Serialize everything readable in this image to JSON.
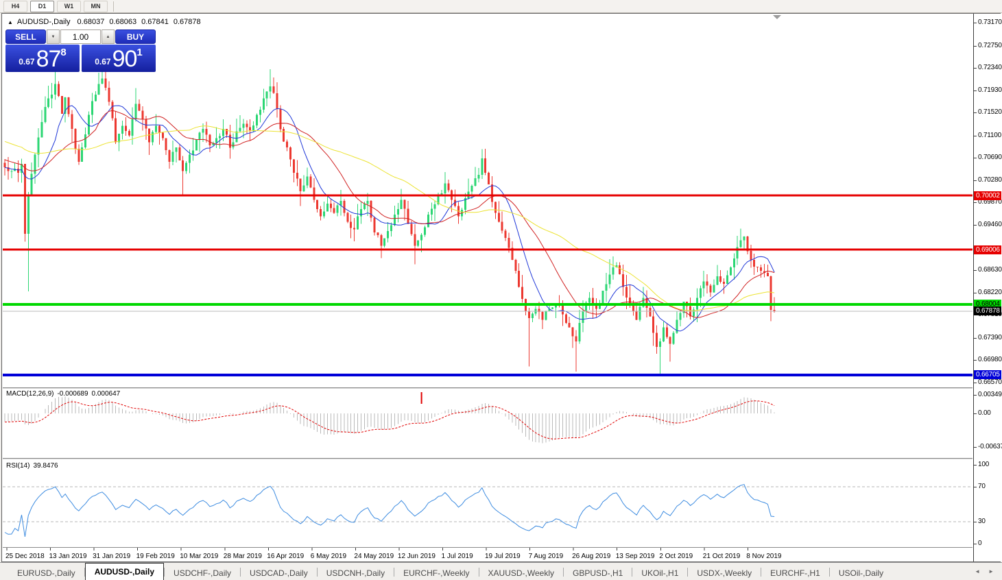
{
  "toolbar": {
    "timeframes": [
      {
        "label": "H4",
        "active": false
      },
      {
        "label": "D1",
        "active": true
      },
      {
        "label": "W1",
        "active": false
      },
      {
        "label": "MN",
        "active": false
      }
    ]
  },
  "window": {
    "collapse_glyph": "▲",
    "symbol_title": "AUDUSD-,Daily",
    "ohlc": {
      "open": "0.68037",
      "high": "0.68063",
      "low": "0.67841",
      "close": "0.67878"
    }
  },
  "trade_panel": {
    "sell_label": "SELL",
    "buy_label": "BUY",
    "volume": "1.00",
    "spin_down_glyph": "▼",
    "spin_up_glyph": "▲",
    "sell_price": {
      "prefix": "0.67",
      "big": "87",
      "sup": "8"
    },
    "buy_price": {
      "prefix": "0.67",
      "big": "90",
      "sup": "1"
    }
  },
  "price_axis": {
    "ticks": [
      0.7317,
      0.7275,
      0.7234,
      0.7193,
      0.7152,
      0.711,
      0.7069,
      0.7028,
      0.6987,
      0.6946,
      0.6863,
      0.6822,
      0.6781,
      0.6739,
      0.6698,
      0.6657
    ]
  },
  "levels": [
    {
      "price": 0.70002,
      "label": "0.70002",
      "color": "#e60000",
      "text_color": "#ffffff",
      "width": 3
    },
    {
      "price": 0.69006,
      "label": "0.69006",
      "color": "#e60000",
      "text_color": "#ffffff",
      "width": 3
    },
    {
      "price": 0.68004,
      "label": "0.68004",
      "color": "#00d800",
      "text_color": "#000000",
      "width": 4
    },
    {
      "price": 0.66705,
      "label": "0.66705",
      "color": "#0000d8",
      "text_color": "#ffffff",
      "width": 4
    }
  ],
  "current_price": {
    "price": 0.67878,
    "label": "0.67878",
    "badge_color": "#000000",
    "text_color": "#ffffff",
    "line_color": "#b9b9b9"
  },
  "indicators": {
    "macd": {
      "name": "MACD(12,26,9)",
      "value_main": "-0.000689",
      "value_signal": "0.000647",
      "axis_ticks": [
        0.00349,
        0,
        -0.00637
      ],
      "hist_color": "#b9b9b9",
      "signal_color": "#e00000"
    },
    "rsi": {
      "name": "RSI(14)",
      "value": "39.8476",
      "axis_ticks": [
        100,
        70,
        30,
        0
      ],
      "levels": [
        70,
        30
      ],
      "line_color": "#3c8be0"
    }
  },
  "chart_data": {
    "type": "candlestick",
    "symbol": "AUDUSD",
    "timeframe": "Daily",
    "bars": 230,
    "price_range_top": 0.7317,
    "price_range_bottom": 0.6657,
    "bull_color": "#2bd673",
    "bear_color": "#ec3830",
    "ma_lines": [
      {
        "period": 10,
        "color": "#2038d8"
      },
      {
        "period": 22,
        "color": "#d02020"
      },
      {
        "period": 50,
        "color": "#ece332"
      }
    ],
    "close_anchors": [
      [
        0,
        0.7052
      ],
      [
        2,
        0.7045
      ],
      [
        4,
        0.7042
      ],
      [
        5,
        0.7058
      ],
      [
        6,
        0.693
      ],
      [
        7,
        0.7
      ],
      [
        8,
        0.704
      ],
      [
        9,
        0.7075
      ],
      [
        11,
        0.7135
      ],
      [
        13,
        0.7178
      ],
      [
        15,
        0.7205
      ],
      [
        17,
        0.715
      ],
      [
        18,
        0.718
      ],
      [
        20,
        0.7122
      ],
      [
        22,
        0.7062
      ],
      [
        23,
        0.7088
      ],
      [
        25,
        0.7148
      ],
      [
        27,
        0.7185
      ],
      [
        28,
        0.7205
      ],
      [
        29,
        0.7215
      ],
      [
        30,
        0.7198
      ],
      [
        31,
        0.7172
      ],
      [
        33,
        0.7098
      ],
      [
        35,
        0.7128
      ],
      [
        37,
        0.711
      ],
      [
        39,
        0.7168
      ],
      [
        41,
        0.714
      ],
      [
        43,
        0.7098
      ],
      [
        45,
        0.7128
      ],
      [
        47,
        0.7105
      ],
      [
        49,
        0.7062
      ],
      [
        51,
        0.7088
      ],
      [
        53,
        0.7045
      ],
      [
        55,
        0.7075
      ],
      [
        57,
        0.7102
      ],
      [
        59,
        0.7122
      ],
      [
        61,
        0.7092
      ],
      [
        63,
        0.7105
      ],
      [
        65,
        0.7122
      ],
      [
        67,
        0.7088
      ],
      [
        69,
        0.7118
      ],
      [
        71,
        0.7132
      ],
      [
        73,
        0.712
      ],
      [
        75,
        0.7148
      ],
      [
        77,
        0.7178
      ],
      [
        79,
        0.72
      ],
      [
        80,
        0.7188
      ],
      [
        82,
        0.7122
      ],
      [
        84,
        0.7088
      ],
      [
        86,
        0.7042
      ],
      [
        88,
        0.7008
      ],
      [
        90,
        0.7035
      ],
      [
        92,
        0.6992
      ],
      [
        94,
        0.6962
      ],
      [
        96,
        0.6985
      ],
      [
        98,
        0.6968
      ],
      [
        100,
        0.699
      ],
      [
        102,
        0.6952
      ],
      [
        104,
        0.6938
      ],
      [
        106,
        0.6975
      ],
      [
        108,
        0.699
      ],
      [
        110,
        0.6932
      ],
      [
        112,
        0.6908
      ],
      [
        114,
        0.6935
      ],
      [
        116,
        0.6965
      ],
      [
        118,
        0.6992
      ],
      [
        120,
        0.6948
      ],
      [
        122,
        0.6908
      ],
      [
        124,
        0.6928
      ],
      [
        126,
        0.6965
      ],
      [
        129,
        0.7
      ],
      [
        131,
        0.7022
      ],
      [
        133,
        0.6992
      ],
      [
        135,
        0.6962
      ],
      [
        137,
        0.6995
      ],
      [
        139,
        0.7018
      ],
      [
        141,
        0.7038
      ],
      [
        142,
        0.7068
      ],
      [
        143,
        0.7042
      ],
      [
        145,
        0.6988
      ],
      [
        147,
        0.6952
      ],
      [
        149,
        0.6922
      ],
      [
        151,
        0.6882
      ],
      [
        153,
        0.6832
      ],
      [
        155,
        0.6788
      ],
      [
        156,
        0.6775
      ],
      [
        158,
        0.6792
      ],
      [
        160,
        0.6772
      ],
      [
        162,
        0.6792
      ],
      [
        164,
        0.6802
      ],
      [
        166,
        0.6782
      ],
      [
        168,
        0.6758
      ],
      [
        170,
        0.6732
      ],
      [
        172,
        0.6788
      ],
      [
        174,
        0.6812
      ],
      [
        176,
        0.6792
      ],
      [
        178,
        0.6825
      ],
      [
        180,
        0.6855
      ],
      [
        182,
        0.6872
      ],
      [
        184,
        0.6832
      ],
      [
        186,
        0.6802
      ],
      [
        188,
        0.6772
      ],
      [
        190,
        0.6812
      ],
      [
        192,
        0.6778
      ],
      [
        193,
        0.6748
      ],
      [
        194,
        0.6722
      ],
      [
        195,
        0.6732
      ],
      [
        196,
        0.6758
      ],
      [
        198,
        0.6728
      ],
      [
        200,
        0.6772
      ],
      [
        202,
        0.6805
      ],
      [
        204,
        0.6778
      ],
      [
        206,
        0.6812
      ],
      [
        208,
        0.6842
      ],
      [
        210,
        0.6822
      ],
      [
        212,
        0.6852
      ],
      [
        214,
        0.6838
      ],
      [
        216,
        0.6868
      ],
      [
        218,
        0.6905
      ],
      [
        219,
        0.6918
      ],
      [
        220,
        0.6925
      ],
      [
        221,
        0.6898
      ],
      [
        222,
        0.6882
      ],
      [
        224,
        0.6868
      ],
      [
        226,
        0.6858
      ],
      [
        227,
        0.6852
      ],
      [
        228,
        0.679
      ],
      [
        229,
        0.67878
      ]
    ],
    "high_spikes": {
      "15": 0.7228,
      "29": 0.7235,
      "39": 0.7197,
      "79": 0.7232,
      "118": 0.7012,
      "131": 0.7043,
      "142": 0.7085,
      "180": 0.6883,
      "190": 0.6832,
      "208": 0.6862,
      "219": 0.6938
    },
    "low_spikes": {
      "7": 0.6824,
      "53": 0.7002,
      "88": 0.6981,
      "104": 0.6916,
      "112": 0.6885,
      "122": 0.6874,
      "156": 0.6686,
      "170": 0.6677,
      "195": 0.66705,
      "198": 0.6695,
      "228": 0.6769
    },
    "x_axis_labels": [
      "25 Dec 2018",
      "13 Jan 2019",
      "31 Jan 2019",
      "19 Feb 2019",
      "10 Mar 2019",
      "28 Mar 2019",
      "16 Apr 2019",
      "6 May 2019",
      "24 May 2019",
      "12 Jun 2019",
      "1 Jul 2019",
      "19 Jul 2019",
      "7 Aug 2019",
      "26 Aug 2019",
      "13 Sep 2019",
      "2 Oct 2019",
      "21 Oct 2019",
      "8 Nov 2019"
    ]
  },
  "tab_bar": {
    "tabs": [
      {
        "label": "EURUSD-,Daily",
        "active": false
      },
      {
        "label": "AUDUSD-,Daily",
        "active": true
      },
      {
        "label": "USDCHF-,Daily",
        "active": false
      },
      {
        "label": "USDCAD-,Daily",
        "active": false
      },
      {
        "label": "USDCNH-,Daily",
        "active": false
      },
      {
        "label": "EURCHF-,Weekly",
        "active": false
      },
      {
        "label": "XAUUSD-,Weekly",
        "active": false
      },
      {
        "label": "GBPUSD-,H1",
        "active": false
      },
      {
        "label": "UKOil-,H1",
        "active": false
      },
      {
        "label": "USDX-,Weekly",
        "active": false
      },
      {
        "label": "EURCHF-,H1",
        "active": false
      },
      {
        "label": "USOil-,Daily",
        "active": false
      }
    ],
    "scroll_left_glyph": "◄",
    "scroll_right_glyph": "►"
  }
}
